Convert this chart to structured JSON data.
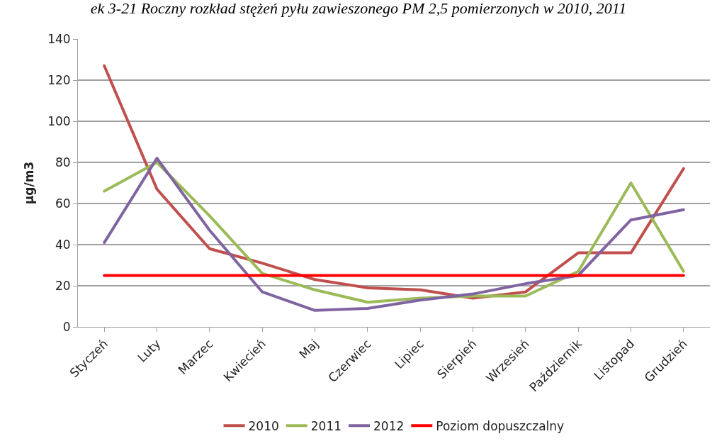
{
  "chart_data": {
    "type": "line",
    "title": "ek 3-21 Roczny rozkład stężeń pyłu zawieszonego PM 2,5 pomierzonych w 2010, 2011",
    "ylabel": "µg/m3",
    "categories": [
      "Styczeń",
      "Luty",
      "Marzec",
      "Kwiecień",
      "Maj",
      "Czerwiec",
      "Lipiec",
      "Sierpień",
      "Wrzesień",
      "Październik",
      "Listopad",
      "Grudzień"
    ],
    "series": [
      {
        "name": "2010",
        "color": "#c0504d",
        "values": [
          127,
          67,
          38,
          31,
          23,
          19,
          18,
          14,
          17,
          36,
          36,
          77
        ]
      },
      {
        "name": "2011",
        "color": "#9bbb59",
        "values": [
          66,
          80,
          54,
          26,
          18,
          12,
          14,
          15,
          15,
          27,
          70,
          27
        ]
      },
      {
        "name": "2012",
        "color": "#8064a2",
        "values": [
          41,
          82,
          47,
          17,
          8,
          9,
          13,
          16,
          21,
          25,
          52,
          57
        ]
      },
      {
        "name": "Poziom dopuszczalny",
        "color": "#ff0000",
        "values": [
          25,
          25,
          25,
          25,
          25,
          25,
          25,
          25,
          25,
          25,
          25,
          25
        ]
      }
    ],
    "ylim": [
      0,
      140
    ],
    "yticks": [
      0,
      20,
      40,
      60,
      80,
      100,
      120,
      140
    ],
    "grid": "y",
    "legend": "bottom",
    "marker": "none",
    "line_style": "solid"
  }
}
